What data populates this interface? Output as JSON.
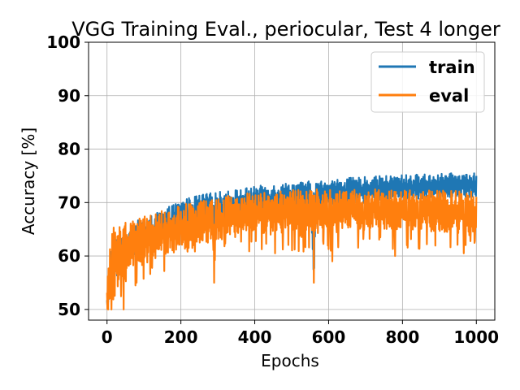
{
  "chart_data": {
    "type": "line",
    "title": "VGG Training Eval., periocular, Test 4 longer",
    "xlabel": "Epochs",
    "ylabel": "Accuracy [%]",
    "xlim": [
      -50,
      1050
    ],
    "ylim": [
      48,
      100
    ],
    "x_ticks": [
      0,
      200,
      400,
      600,
      800,
      1000
    ],
    "y_ticks": [
      50,
      60,
      70,
      80,
      90,
      100
    ],
    "grid": true,
    "legend_position": "top-right",
    "series": [
      {
        "name": "train",
        "color": "#1f77b4",
        "x": [
          0,
          5,
          10,
          20,
          30,
          50,
          75,
          100,
          150,
          200,
          250,
          300,
          350,
          400,
          450,
          500,
          550,
          560,
          570,
          600,
          650,
          700,
          750,
          800,
          850,
          900,
          950,
          1000
        ],
        "upper": [
          52,
          58,
          62,
          63,
          64,
          65,
          66.5,
          67,
          68.5,
          70.5,
          71.5,
          72,
          72.5,
          73,
          73.5,
          73.8,
          74,
          74,
          74,
          74.3,
          74.6,
          74.8,
          75,
          75.2,
          75.3,
          75.4,
          75.5,
          75.5
        ],
        "lower": [
          50,
          51,
          53,
          55,
          56,
          57.5,
          59.5,
          61,
          62.5,
          64,
          65,
          66,
          66.5,
          67.5,
          68,
          68.5,
          69,
          54.5,
          69,
          69,
          69.5,
          70,
          70,
          70.5,
          70.5,
          71,
          71,
          71
        ]
      },
      {
        "name": "eval",
        "color": "#ff7f0e",
        "x": [
          0,
          5,
          10,
          20,
          30,
          50,
          75,
          100,
          150,
          200,
          250,
          300,
          350,
          400,
          450,
          500,
          550,
          600,
          650,
          700,
          750,
          800,
          850,
          900,
          950,
          1000
        ],
        "upper": [
          54,
          60,
          65,
          66,
          66.5,
          66.5,
          67,
          67.5,
          68.5,
          69.5,
          70.5,
          71,
          71.5,
          72,
          72,
          72.5,
          72.5,
          72.5,
          72.5,
          72.5,
          72.5,
          72.5,
          72.5,
          72.5,
          72.5,
          72
        ],
        "lower": [
          50,
          50,
          51,
          52,
          53,
          55,
          57,
          58.5,
          60,
          61,
          62,
          63,
          63.5,
          64,
          64,
          64.5,
          64.5,
          65,
          65,
          65,
          65,
          65,
          65,
          64.5,
          64.5,
          64.5
        ],
        "dips": [
          [
            3,
            50
          ],
          [
            12,
            50
          ],
          [
            45,
            50
          ],
          [
            80,
            55
          ],
          [
            290,
            55
          ],
          [
            455,
            60.5
          ],
          [
            560,
            55
          ],
          [
            610,
            59
          ],
          [
            780,
            60
          ]
        ]
      }
    ]
  }
}
